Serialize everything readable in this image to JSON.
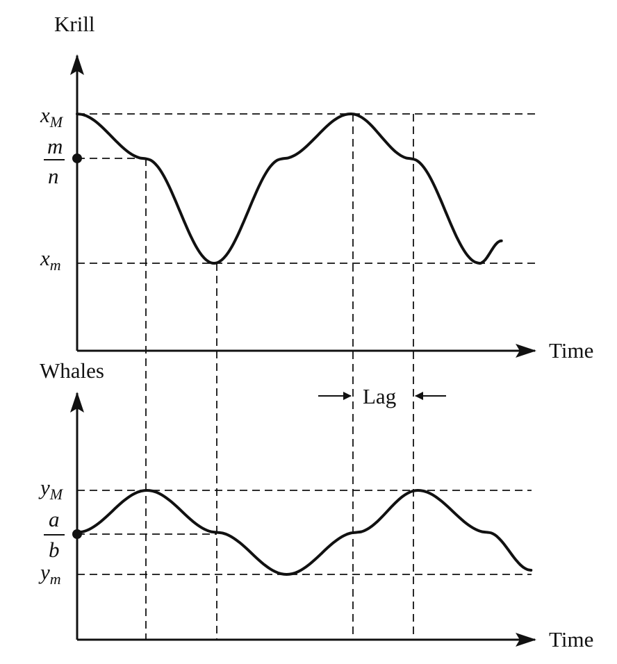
{
  "chart_data": [
    {
      "type": "line",
      "ylabel": "Krill",
      "xlabel": "Time",
      "y_levels": {
        "max": "x",
        "max_sub": "M",
        "mid_num": "m",
        "mid_den": "n",
        "min": "x",
        "min_sub": "m"
      },
      "series": [
        {
          "x": [
            0,
            1,
            2,
            3,
            4,
            4.88,
            5.88,
            6.2
          ],
          "y": [
            1,
            0.7,
            0,
            0.7,
            1,
            0.7,
            0,
            0.15
          ]
        }
      ],
      "ylim": [
        -0.6,
        1.6
      ],
      "grid": false
    },
    {
      "type": "line",
      "ylabel": "Whales",
      "xlabel": "Time",
      "y_levels": {
        "max": "y",
        "max_sub": "M",
        "mid_num": "a",
        "mid_den": "b",
        "min": "y",
        "min_sub": "m"
      },
      "series": [
        {
          "x": [
            0,
            1,
            2,
            3,
            4,
            4.88,
            5.88,
            6.5
          ],
          "y": [
            0.5,
            1,
            0.5,
            0,
            0.5,
            1,
            0.5,
            0.05
          ]
        }
      ],
      "ylim": [
        -0.8,
        2.2
      ],
      "grid": false
    }
  ],
  "annotation": {
    "text": "Lag"
  }
}
